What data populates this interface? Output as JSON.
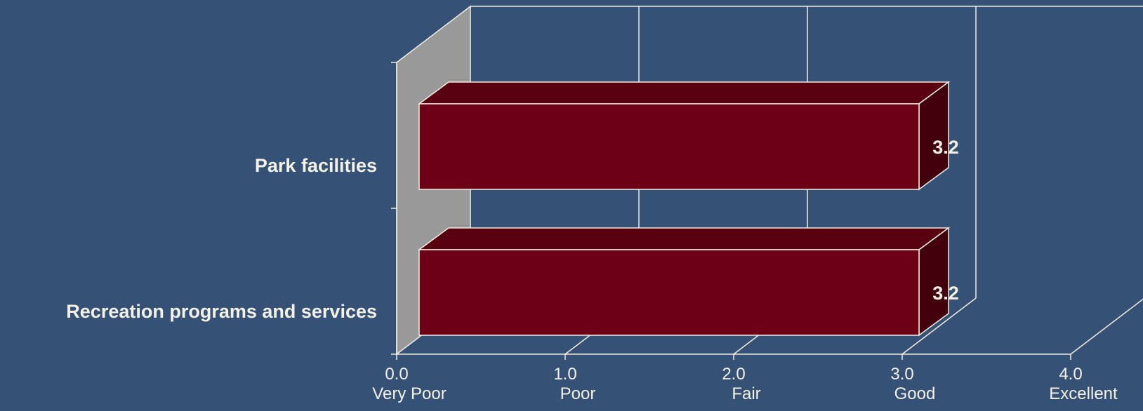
{
  "colors": {
    "background": "#355176",
    "bar_front": "#6d0015",
    "bar_top": "#590011",
    "bar_side": "#42000d",
    "back_wall_side": "#999999",
    "lines": "#f0ede0",
    "text": "#f4f1e6"
  },
  "chart_data": {
    "type": "bar",
    "orientation": "horizontal",
    "style": "3d",
    "categories": [
      "Park facilities",
      "Recreation programs and services"
    ],
    "values": [
      3.2,
      3.2
    ],
    "value_labels": [
      "3.2",
      "3.2"
    ],
    "xlim": [
      0,
      4
    ],
    "x_ticks": [
      {
        "value": 0,
        "label": "0.0",
        "sublabel": "Very Poor"
      },
      {
        "value": 1,
        "label": "1.0",
        "sublabel": "Poor"
      },
      {
        "value": 2,
        "label": "2.0",
        "sublabel": "Fair"
      },
      {
        "value": 3,
        "label": "3.0",
        "sublabel": "Good"
      },
      {
        "value": 4,
        "label": "4.0",
        "sublabel": "Excellent"
      }
    ],
    "grid": true,
    "title": "",
    "xlabel": "",
    "ylabel": ""
  }
}
